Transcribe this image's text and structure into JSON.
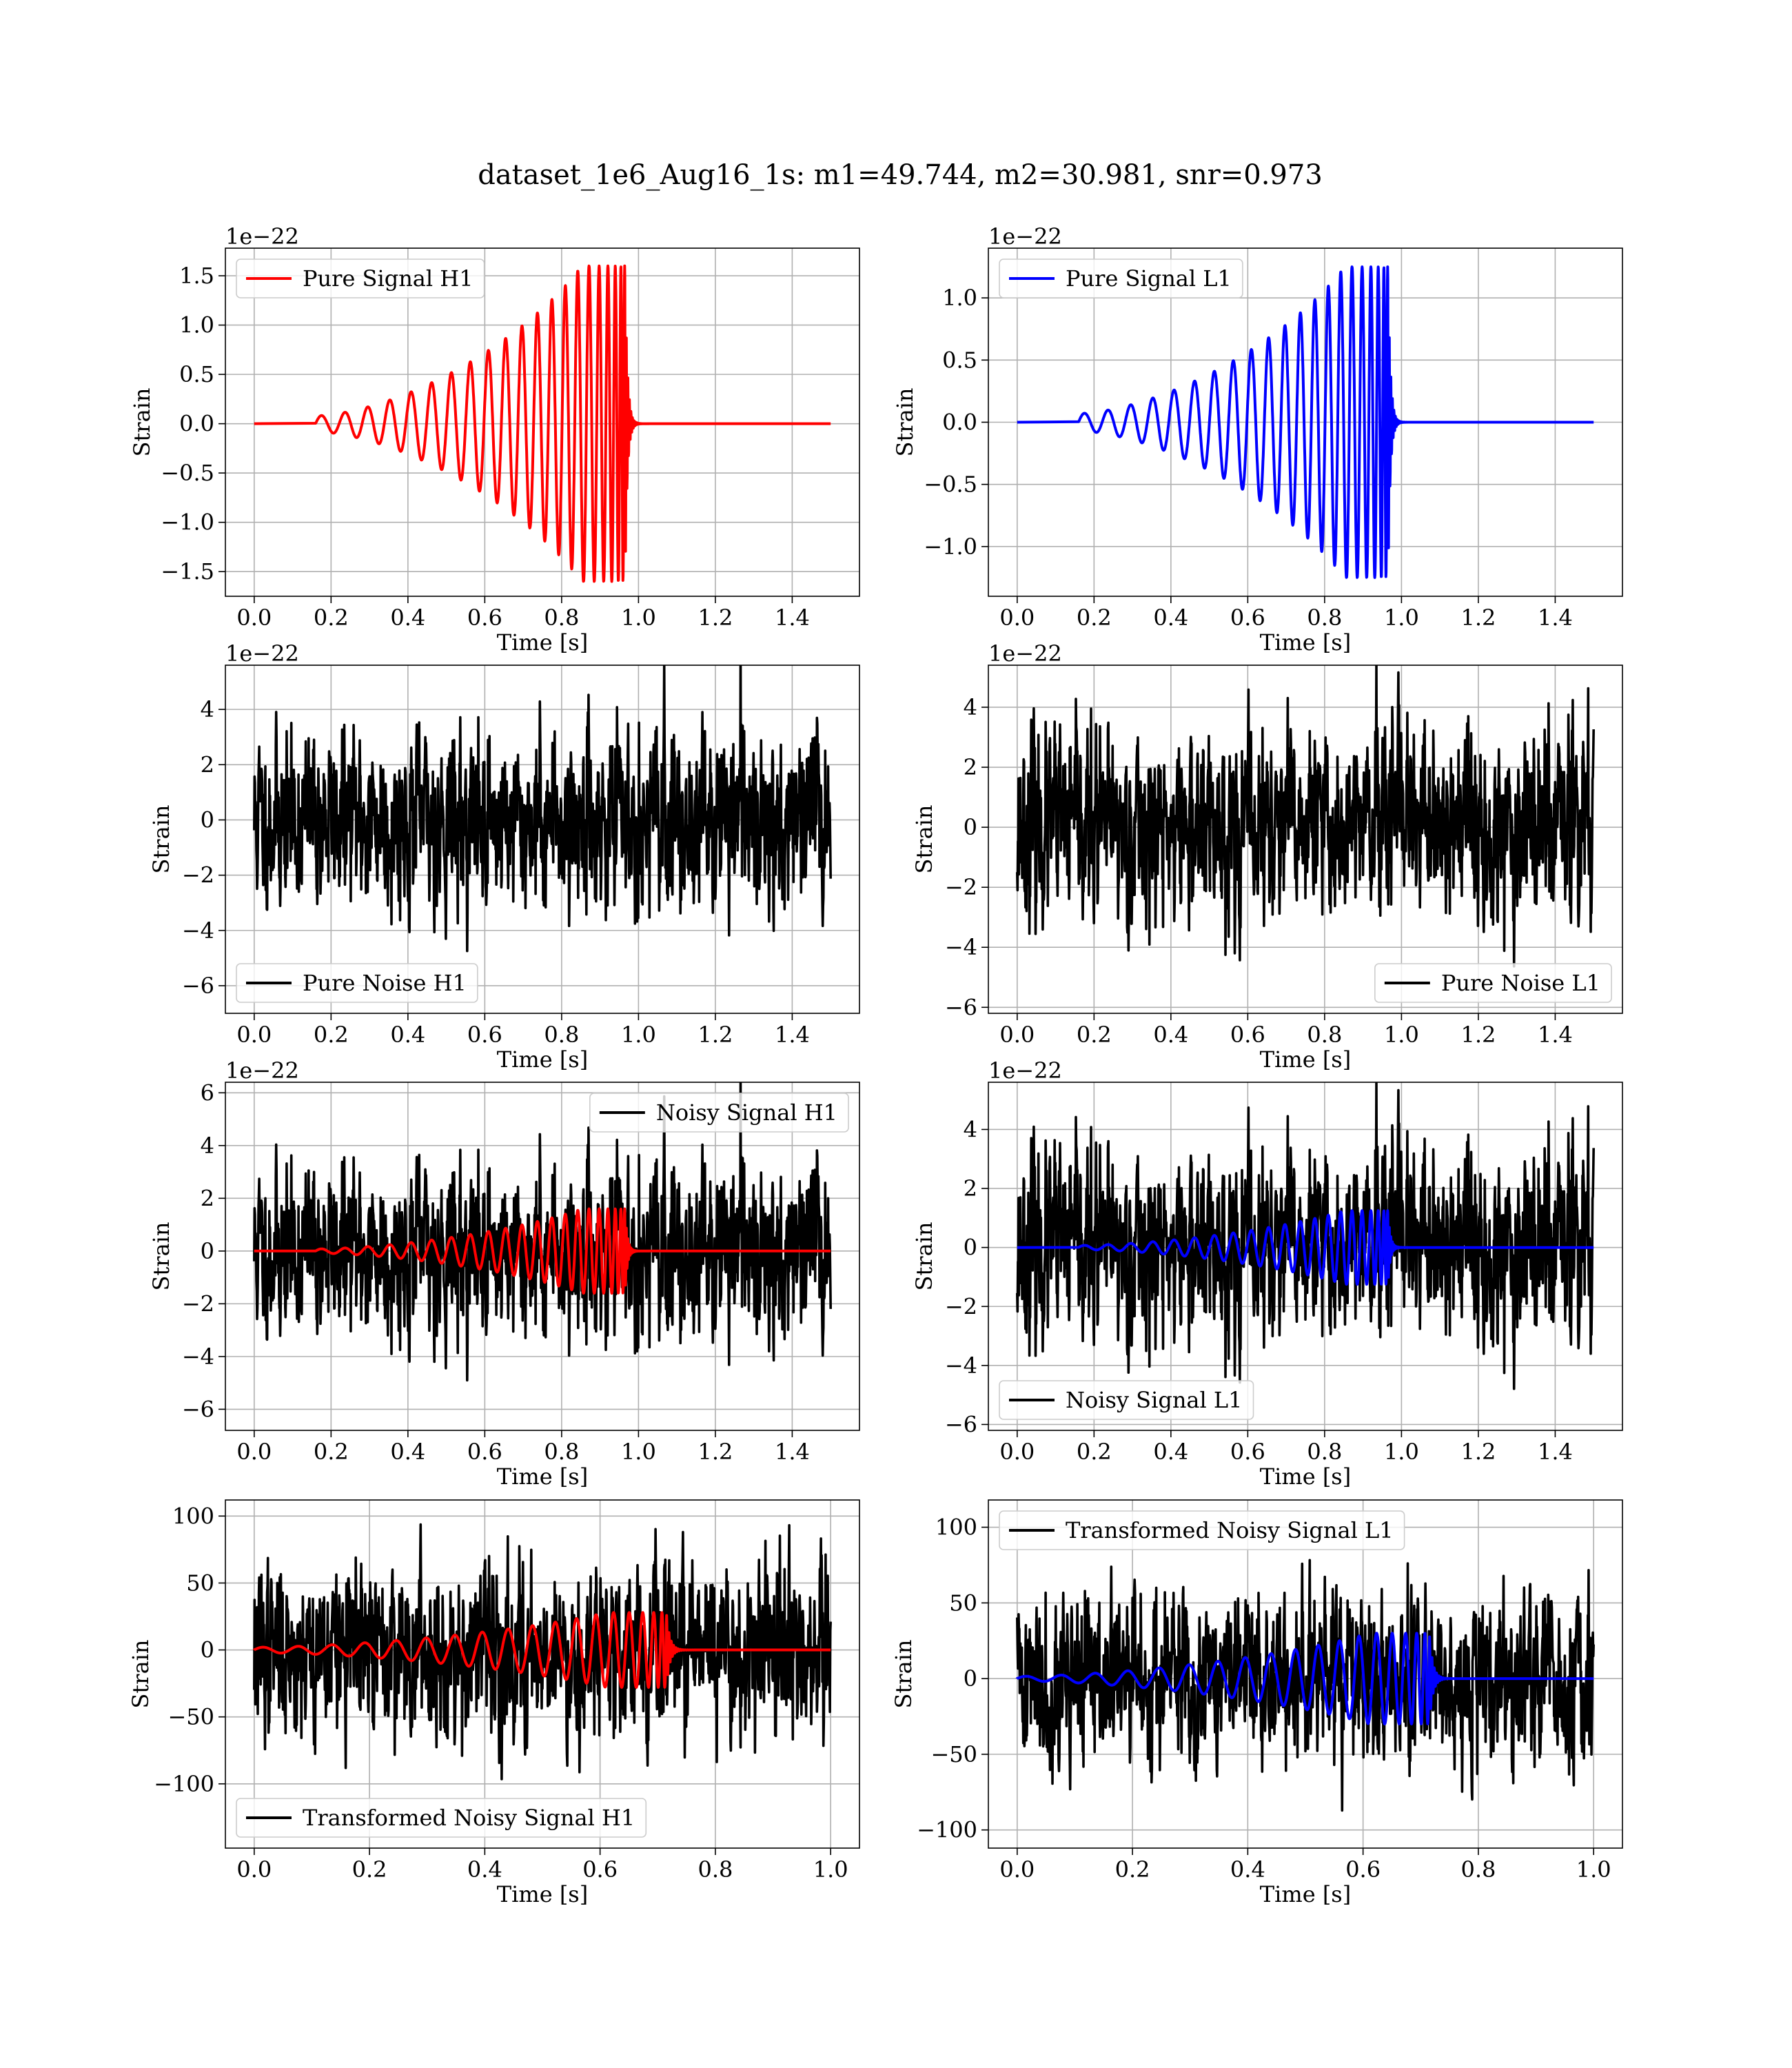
{
  "figure": {
    "title": "dataset_1e6_Aug16_1s: m1=49.744, m2=30.981, snr=0.973"
  },
  "colors": {
    "h1_signal": "#ff0000",
    "l1_signal": "#0000ff",
    "noise": "#000000",
    "grid": "#b0b0b0"
  },
  "chart_data": [
    {
      "type": "line",
      "panel": "pure-signal-h1",
      "xlabel": "Time [s]",
      "ylabel": "Strain",
      "offset_text": "1e−22",
      "xlim": [
        -0.075,
        1.575
      ],
      "ylim": [
        -1.75,
        1.78
      ],
      "xticks": [
        0.0,
        0.2,
        0.4,
        0.6,
        0.8,
        1.0,
        1.2,
        1.4
      ],
      "xtick_labels": [
        "0.0",
        "0.2",
        "0.4",
        "0.6",
        "0.8",
        "1.0",
        "1.2",
        "1.4"
      ],
      "yticks": [
        -1.5,
        -1.0,
        -0.5,
        0.0,
        0.5,
        1.0,
        1.5
      ],
      "ytick_labels": [
        "−1.5",
        "−1.0",
        "−0.5",
        "0.0",
        "0.5",
        "1.0",
        "1.5"
      ],
      "grid": true,
      "legend_loc": "upper-left",
      "series": [
        {
          "name": "Pure Signal H1",
          "color": "#ff0000",
          "kind": "chirp",
          "t_start": 0.16,
          "t_merge": 0.965,
          "t_end": 1.5,
          "amp_start": 0.08,
          "amp_peak": 1.6
        }
      ]
    },
    {
      "type": "line",
      "panel": "pure-signal-l1",
      "xlabel": "Time [s]",
      "ylabel": "Strain",
      "offset_text": "1e−22",
      "xlim": [
        -0.075,
        1.575
      ],
      "ylim": [
        -1.4,
        1.4
      ],
      "xticks": [
        0.0,
        0.2,
        0.4,
        0.6,
        0.8,
        1.0,
        1.2,
        1.4
      ],
      "xtick_labels": [
        "0.0",
        "0.2",
        "0.4",
        "0.6",
        "0.8",
        "1.0",
        "1.2",
        "1.4"
      ],
      "yticks": [
        -1.0,
        -0.5,
        0.0,
        0.5,
        1.0
      ],
      "ytick_labels": [
        "−1.0",
        "−0.5",
        "0.0",
        "0.5",
        "1.0"
      ],
      "grid": true,
      "legend_loc": "upper-left",
      "series": [
        {
          "name": "Pure Signal L1",
          "color": "#0000ff",
          "kind": "chirp",
          "t_start": 0.16,
          "t_merge": 0.965,
          "t_end": 1.5,
          "amp_start": 0.07,
          "amp_peak": 1.25
        }
      ]
    },
    {
      "type": "line",
      "panel": "pure-noise-h1",
      "xlabel": "Time [s]",
      "ylabel": "Strain",
      "offset_text": "1e−22",
      "xlim": [
        -0.075,
        1.575
      ],
      "ylim": [
        -7.0,
        5.6
      ],
      "xticks": [
        0.0,
        0.2,
        0.4,
        0.6,
        0.8,
        1.0,
        1.2,
        1.4
      ],
      "xtick_labels": [
        "0.0",
        "0.2",
        "0.4",
        "0.6",
        "0.8",
        "1.0",
        "1.2",
        "1.4"
      ],
      "yticks": [
        -6,
        -4,
        -2,
        0,
        2,
        4
      ],
      "ytick_labels": [
        "−6",
        "−4",
        "−2",
        "0",
        "2",
        "4"
      ],
      "grid": true,
      "legend_loc": "lower-left",
      "series": [
        {
          "name": "Pure Noise H1",
          "color": "#000000",
          "kind": "noise",
          "t_start": 0.0,
          "t_end": 1.5,
          "sigma": 1.5,
          "seed": 11
        }
      ]
    },
    {
      "type": "line",
      "panel": "pure-noise-l1",
      "xlabel": "Time [s]",
      "ylabel": "Strain",
      "offset_text": "1e−22",
      "xlim": [
        -0.075,
        1.575
      ],
      "ylim": [
        -6.2,
        5.4
      ],
      "xticks": [
        0.0,
        0.2,
        0.4,
        0.6,
        0.8,
        1.0,
        1.2,
        1.4
      ],
      "xtick_labels": [
        "0.0",
        "0.2",
        "0.4",
        "0.6",
        "0.8",
        "1.0",
        "1.2",
        "1.4"
      ],
      "yticks": [
        -6,
        -4,
        -2,
        0,
        2,
        4
      ],
      "ytick_labels": [
        "−6",
        "−4",
        "−2",
        "0",
        "2",
        "4"
      ],
      "grid": true,
      "legend_loc": "lower-right",
      "series": [
        {
          "name": "Pure Noise L1",
          "color": "#000000",
          "kind": "noise",
          "t_start": 0.0,
          "t_end": 1.5,
          "sigma": 1.5,
          "seed": 23
        }
      ]
    },
    {
      "type": "line",
      "panel": "noisy-signal-h1",
      "xlabel": "Time [s]",
      "ylabel": "Strain",
      "offset_text": "1e−22",
      "xlim": [
        -0.075,
        1.575
      ],
      "ylim": [
        -6.8,
        6.4
      ],
      "xticks": [
        0.0,
        0.2,
        0.4,
        0.6,
        0.8,
        1.0,
        1.2,
        1.4
      ],
      "xtick_labels": [
        "0.0",
        "0.2",
        "0.4",
        "0.6",
        "0.8",
        "1.0",
        "1.2",
        "1.4"
      ],
      "yticks": [
        -6,
        -4,
        -2,
        0,
        2,
        4,
        6
      ],
      "ytick_labels": [
        "−6",
        "−4",
        "−2",
        "0",
        "2",
        "4",
        "6"
      ],
      "grid": true,
      "legend_loc": "upper-right",
      "series": [
        {
          "name": "Noisy Signal H1",
          "color": "#000000",
          "kind": "noise",
          "t_start": 0.0,
          "t_end": 1.5,
          "sigma": 1.55,
          "seed": 11
        },
        {
          "color": "#ff0000",
          "kind": "chirp",
          "t_start": 0.16,
          "t_merge": 0.965,
          "t_end": 1.5,
          "amp_start": 0.08,
          "amp_peak": 1.6
        }
      ]
    },
    {
      "type": "line",
      "panel": "noisy-signal-l1",
      "xlabel": "Time [s]",
      "ylabel": "Strain",
      "offset_text": "1e−22",
      "xlim": [
        -0.075,
        1.575
      ],
      "ylim": [
        -6.2,
        5.6
      ],
      "xticks": [
        0.0,
        0.2,
        0.4,
        0.6,
        0.8,
        1.0,
        1.2,
        1.4
      ],
      "xtick_labels": [
        "0.0",
        "0.2",
        "0.4",
        "0.6",
        "0.8",
        "1.0",
        "1.2",
        "1.4"
      ],
      "yticks": [
        -6,
        -4,
        -2,
        0,
        2,
        4
      ],
      "ytick_labels": [
        "−6",
        "−4",
        "−2",
        "0",
        "2",
        "4"
      ],
      "grid": true,
      "legend_loc": "lower-left",
      "series": [
        {
          "name": "Noisy Signal L1",
          "color": "#000000",
          "kind": "noise",
          "t_start": 0.0,
          "t_end": 1.5,
          "sigma": 1.55,
          "seed": 23
        },
        {
          "color": "#0000ff",
          "kind": "chirp",
          "t_start": 0.16,
          "t_merge": 0.965,
          "t_end": 1.5,
          "amp_start": 0.07,
          "amp_peak": 1.25
        }
      ]
    },
    {
      "type": "line",
      "panel": "transformed-noisy-signal-h1",
      "xlabel": "Time [s]",
      "ylabel": "Strain",
      "offset_text": "",
      "xlim": [
        -0.05,
        1.05
      ],
      "ylim": [
        -148,
        112
      ],
      "xticks": [
        0.0,
        0.2,
        0.4,
        0.6,
        0.8,
        1.0
      ],
      "xtick_labels": [
        "0.0",
        "0.2",
        "0.4",
        "0.6",
        "0.8",
        "1.0"
      ],
      "yticks": [
        -100,
        -50,
        0,
        50,
        100
      ],
      "ytick_labels": [
        "−100",
        "−50",
        "0",
        "50",
        "100"
      ],
      "grid": true,
      "legend_loc": "lower-left",
      "series": [
        {
          "name": "Transformed Noisy Signal H1",
          "color": "#000000",
          "kind": "noise",
          "t_start": 0.0,
          "t_end": 1.0,
          "sigma": 30,
          "seed": 37
        },
        {
          "color": "#ff0000",
          "kind": "chirp",
          "t_start": 0.0,
          "t_merge": 0.715,
          "t_end": 1.0,
          "amp_start": 2.0,
          "amp_peak": 28
        }
      ]
    },
    {
      "type": "line",
      "panel": "transformed-noisy-signal-l1",
      "xlabel": "Time [s]",
      "ylabel": "Strain",
      "offset_text": "",
      "xlim": [
        -0.05,
        1.05
      ],
      "ylim": [
        -112,
        118
      ],
      "xticks": [
        0.0,
        0.2,
        0.4,
        0.6,
        0.8,
        1.0
      ],
      "xtick_labels": [
        "0.0",
        "0.2",
        "0.4",
        "0.6",
        "0.8",
        "1.0"
      ],
      "yticks": [
        -100,
        -50,
        0,
        50,
        100
      ],
      "ytick_labels": [
        "−100",
        "−50",
        "0",
        "50",
        "100"
      ],
      "grid": true,
      "legend_loc": "upper-left",
      "series": [
        {
          "name": "Transformed Noisy Signal L1",
          "color": "#000000",
          "kind": "noise",
          "t_start": 0.0,
          "t_end": 1.0,
          "sigma": 27,
          "seed": 41
        },
        {
          "color": "#0000ff",
          "kind": "chirp",
          "t_start": 0.0,
          "t_merge": 0.715,
          "t_end": 1.0,
          "amp_start": 1.5,
          "amp_peak": 30
        }
      ]
    }
  ]
}
